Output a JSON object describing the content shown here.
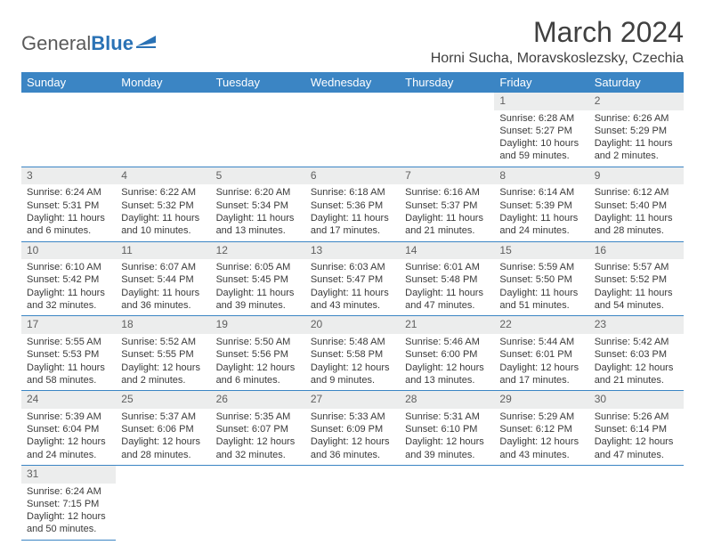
{
  "brand": {
    "text1": "General",
    "text2": "Blue"
  },
  "title": "March 2024",
  "location": "Horni Sucha, Moravskoslezsky, Czechia",
  "colors": {
    "header_bg": "#3b85c4",
    "header_fg": "#ffffff",
    "daynum_bg": "#eceded",
    "rule": "#3b85c4"
  },
  "weekdays": [
    "Sunday",
    "Monday",
    "Tuesday",
    "Wednesday",
    "Thursday",
    "Friday",
    "Saturday"
  ],
  "weeks": [
    [
      null,
      null,
      null,
      null,
      null,
      {
        "n": "1",
        "sr": "Sunrise: 6:28 AM",
        "ss": "Sunset: 5:27 PM",
        "dl": "Daylight: 10 hours and 59 minutes."
      },
      {
        "n": "2",
        "sr": "Sunrise: 6:26 AM",
        "ss": "Sunset: 5:29 PM",
        "dl": "Daylight: 11 hours and 2 minutes."
      }
    ],
    [
      {
        "n": "3",
        "sr": "Sunrise: 6:24 AM",
        "ss": "Sunset: 5:31 PM",
        "dl": "Daylight: 11 hours and 6 minutes."
      },
      {
        "n": "4",
        "sr": "Sunrise: 6:22 AM",
        "ss": "Sunset: 5:32 PM",
        "dl": "Daylight: 11 hours and 10 minutes."
      },
      {
        "n": "5",
        "sr": "Sunrise: 6:20 AM",
        "ss": "Sunset: 5:34 PM",
        "dl": "Daylight: 11 hours and 13 minutes."
      },
      {
        "n": "6",
        "sr": "Sunrise: 6:18 AM",
        "ss": "Sunset: 5:36 PM",
        "dl": "Daylight: 11 hours and 17 minutes."
      },
      {
        "n": "7",
        "sr": "Sunrise: 6:16 AM",
        "ss": "Sunset: 5:37 PM",
        "dl": "Daylight: 11 hours and 21 minutes."
      },
      {
        "n": "8",
        "sr": "Sunrise: 6:14 AM",
        "ss": "Sunset: 5:39 PM",
        "dl": "Daylight: 11 hours and 24 minutes."
      },
      {
        "n": "9",
        "sr": "Sunrise: 6:12 AM",
        "ss": "Sunset: 5:40 PM",
        "dl": "Daylight: 11 hours and 28 minutes."
      }
    ],
    [
      {
        "n": "10",
        "sr": "Sunrise: 6:10 AM",
        "ss": "Sunset: 5:42 PM",
        "dl": "Daylight: 11 hours and 32 minutes."
      },
      {
        "n": "11",
        "sr": "Sunrise: 6:07 AM",
        "ss": "Sunset: 5:44 PM",
        "dl": "Daylight: 11 hours and 36 minutes."
      },
      {
        "n": "12",
        "sr": "Sunrise: 6:05 AM",
        "ss": "Sunset: 5:45 PM",
        "dl": "Daylight: 11 hours and 39 minutes."
      },
      {
        "n": "13",
        "sr": "Sunrise: 6:03 AM",
        "ss": "Sunset: 5:47 PM",
        "dl": "Daylight: 11 hours and 43 minutes."
      },
      {
        "n": "14",
        "sr": "Sunrise: 6:01 AM",
        "ss": "Sunset: 5:48 PM",
        "dl": "Daylight: 11 hours and 47 minutes."
      },
      {
        "n": "15",
        "sr": "Sunrise: 5:59 AM",
        "ss": "Sunset: 5:50 PM",
        "dl": "Daylight: 11 hours and 51 minutes."
      },
      {
        "n": "16",
        "sr": "Sunrise: 5:57 AM",
        "ss": "Sunset: 5:52 PM",
        "dl": "Daylight: 11 hours and 54 minutes."
      }
    ],
    [
      {
        "n": "17",
        "sr": "Sunrise: 5:55 AM",
        "ss": "Sunset: 5:53 PM",
        "dl": "Daylight: 11 hours and 58 minutes."
      },
      {
        "n": "18",
        "sr": "Sunrise: 5:52 AM",
        "ss": "Sunset: 5:55 PM",
        "dl": "Daylight: 12 hours and 2 minutes."
      },
      {
        "n": "19",
        "sr": "Sunrise: 5:50 AM",
        "ss": "Sunset: 5:56 PM",
        "dl": "Daylight: 12 hours and 6 minutes."
      },
      {
        "n": "20",
        "sr": "Sunrise: 5:48 AM",
        "ss": "Sunset: 5:58 PM",
        "dl": "Daylight: 12 hours and 9 minutes."
      },
      {
        "n": "21",
        "sr": "Sunrise: 5:46 AM",
        "ss": "Sunset: 6:00 PM",
        "dl": "Daylight: 12 hours and 13 minutes."
      },
      {
        "n": "22",
        "sr": "Sunrise: 5:44 AM",
        "ss": "Sunset: 6:01 PM",
        "dl": "Daylight: 12 hours and 17 minutes."
      },
      {
        "n": "23",
        "sr": "Sunrise: 5:42 AM",
        "ss": "Sunset: 6:03 PM",
        "dl": "Daylight: 12 hours and 21 minutes."
      }
    ],
    [
      {
        "n": "24",
        "sr": "Sunrise: 5:39 AM",
        "ss": "Sunset: 6:04 PM",
        "dl": "Daylight: 12 hours and 24 minutes."
      },
      {
        "n": "25",
        "sr": "Sunrise: 5:37 AM",
        "ss": "Sunset: 6:06 PM",
        "dl": "Daylight: 12 hours and 28 minutes."
      },
      {
        "n": "26",
        "sr": "Sunrise: 5:35 AM",
        "ss": "Sunset: 6:07 PM",
        "dl": "Daylight: 12 hours and 32 minutes."
      },
      {
        "n": "27",
        "sr": "Sunrise: 5:33 AM",
        "ss": "Sunset: 6:09 PM",
        "dl": "Daylight: 12 hours and 36 minutes."
      },
      {
        "n": "28",
        "sr": "Sunrise: 5:31 AM",
        "ss": "Sunset: 6:10 PM",
        "dl": "Daylight: 12 hours and 39 minutes."
      },
      {
        "n": "29",
        "sr": "Sunrise: 5:29 AM",
        "ss": "Sunset: 6:12 PM",
        "dl": "Daylight: 12 hours and 43 minutes."
      },
      {
        "n": "30",
        "sr": "Sunrise: 5:26 AM",
        "ss": "Sunset: 6:14 PM",
        "dl": "Daylight: 12 hours and 47 minutes."
      }
    ],
    [
      {
        "n": "31",
        "sr": "Sunrise: 6:24 AM",
        "ss": "Sunset: 7:15 PM",
        "dl": "Daylight: 12 hours and 50 minutes."
      },
      null,
      null,
      null,
      null,
      null,
      null
    ]
  ]
}
